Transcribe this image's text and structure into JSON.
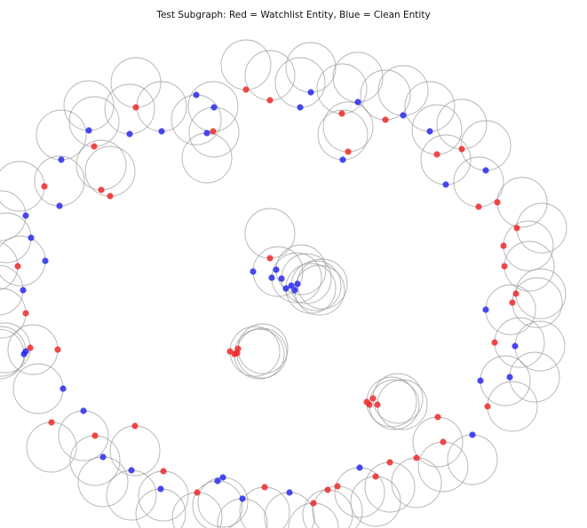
{
  "figure": {
    "title": "Test Subgraph: Red = Watchlist Entity, Blue = Clean Entity"
  },
  "legend_colors": {
    "watchlist": "#ee2222",
    "clean": "#2222ee"
  },
  "nodes": [
    {
      "id": 1,
      "watchlist": false,
      "loop": "up"
    },
    {
      "id": 2,
      "watchlist": false,
      "loop": "up"
    },
    {
      "id": 3,
      "watchlist": true,
      "loop": "up"
    },
    {
      "id": 4,
      "watchlist": false,
      "loop": "up"
    },
    {
      "id": 5,
      "watchlist": true,
      "loop": "up"
    },
    {
      "id": 6,
      "watchlist": false,
      "loop": "up"
    },
    {
      "id": 7,
      "watchlist": false,
      "loop": "down"
    },
    {
      "id": 8,
      "watchlist": false,
      "loop": "down"
    },
    {
      "id": 9,
      "watchlist": false,
      "loop": "down"
    },
    {
      "id": 10,
      "watchlist": true,
      "loop": "up"
    },
    {
      "id": 11,
      "watchlist": true,
      "loop": "up"
    },
    {
      "id": 12,
      "watchlist": true,
      "loop": "up"
    },
    {
      "id": 13,
      "watchlist": false,
      "loop": "up"
    },
    {
      "id": 14,
      "watchlist": false,
      "loop": "up"
    },
    {
      "id": 15,
      "watchlist": true,
      "loop": "up"
    },
    {
      "id": 16,
      "watchlist": false,
      "loop": "up"
    },
    {
      "id": 17,
      "watchlist": true,
      "loop": "up"
    },
    {
      "id": 18,
      "watchlist": false,
      "loop": "up"
    },
    {
      "id": 19,
      "watchlist": false,
      "loop": "up"
    },
    {
      "id": 20,
      "watchlist": true,
      "loop": "up"
    },
    {
      "id": 21,
      "watchlist": true,
      "loop": "up"
    },
    {
      "id": 22,
      "watchlist": false,
      "loop": "up"
    },
    {
      "id": 23,
      "watchlist": false,
      "loop": "up"
    },
    {
      "id": 24,
      "watchlist": true,
      "loop": "up"
    },
    {
      "id": 25,
      "watchlist": true,
      "loop": "right"
    },
    {
      "id": 26,
      "watchlist": true,
      "loop": "right"
    },
    {
      "id": 27,
      "watchlist": true,
      "loop": "right"
    },
    {
      "id": 28,
      "watchlist": true,
      "loop": "right"
    },
    {
      "id": 29,
      "watchlist": true,
      "loop": "right"
    },
    {
      "id": 30,
      "watchlist": true,
      "loop": "right"
    },
    {
      "id": 31,
      "watchlist": false,
      "loop": "right"
    },
    {
      "id": 32,
      "watchlist": true,
      "loop": "right"
    },
    {
      "id": 33,
      "watchlist": false,
      "loop": "right"
    },
    {
      "id": 34,
      "watchlist": false,
      "loop": "right"
    },
    {
      "id": 35,
      "watchlist": false,
      "loop": "right"
    },
    {
      "id": 36,
      "watchlist": true,
      "loop": "right"
    },
    {
      "id": 37,
      "watchlist": true,
      "loop": "down"
    },
    {
      "id": 38,
      "watchlist": false,
      "loop": "down"
    },
    {
      "id": 39,
      "watchlist": true,
      "loop": "down"
    },
    {
      "id": 40,
      "watchlist": true,
      "loop": "down"
    },
    {
      "id": 41,
      "watchlist": true,
      "loop": "down"
    },
    {
      "id": 42,
      "watchlist": true,
      "loop": "down"
    },
    {
      "id": 43,
      "watchlist": false,
      "loop": "down"
    },
    {
      "id": 44,
      "watchlist": true,
      "loop": "down"
    },
    {
      "id": 45,
      "watchlist": true,
      "loop": "down"
    },
    {
      "id": 46,
      "watchlist": true,
      "loop": "down"
    },
    {
      "id": 47,
      "watchlist": false,
      "loop": "down"
    },
    {
      "id": 48,
      "watchlist": true,
      "loop": "down"
    },
    {
      "id": 49,
      "watchlist": false,
      "loop": "down"
    },
    {
      "id": 50,
      "watchlist": false,
      "loop": "down"
    },
    {
      "id": 51,
      "watchlist": false,
      "loop": "down"
    },
    {
      "id": 52,
      "watchlist": true,
      "loop": "down"
    },
    {
      "id": 53,
      "watchlist": true,
      "loop": "down"
    },
    {
      "id": 54,
      "watchlist": false,
      "loop": "down"
    },
    {
      "id": 55,
      "watchlist": true,
      "loop": "down"
    },
    {
      "id": 56,
      "watchlist": false,
      "loop": "down"
    },
    {
      "id": 57,
      "watchlist": true,
      "loop": "down"
    },
    {
      "id": 58,
      "watchlist": false,
      "loop": "down"
    },
    {
      "id": 59,
      "watchlist": false,
      "loop": "down"
    },
    {
      "id": 60,
      "watchlist": true,
      "loop": "down"
    },
    {
      "id": 61,
      "watchlist": false,
      "loop": "left"
    },
    {
      "id": 62,
      "watchlist": false,
      "loop": "left"
    },
    {
      "id": 63,
      "watchlist": true,
      "loop": "left"
    },
    {
      "id": 64,
      "watchlist": true,
      "loop": "left"
    },
    {
      "id": 65,
      "watchlist": false,
      "loop": "left"
    },
    {
      "id": 66,
      "watchlist": true,
      "loop": "left"
    },
    {
      "id": 67,
      "watchlist": false,
      "loop": "left"
    },
    {
      "id": 68,
      "watchlist": true,
      "loop": "left"
    },
    {
      "id": 69,
      "watchlist": false,
      "loop": "left"
    },
    {
      "id": 70,
      "watchlist": false,
      "loop": "left"
    },
    {
      "id": 71,
      "watchlist": false,
      "loop": "left"
    },
    {
      "id": 72,
      "watchlist": true,
      "loop": "left"
    },
    {
      "id": 73,
      "watchlist": false,
      "loop": "up"
    },
    {
      "id": 74,
      "watchlist": true,
      "loop": "up"
    },
    {
      "id": 75,
      "watchlist": true,
      "loop": "up"
    },
    {
      "id": 76,
      "watchlist": false,
      "loop": "up"
    },
    {
      "id": 77,
      "watchlist": true,
      "loop": "up"
    },
    {
      "id": 78,
      "watchlist": false,
      "loop": "right"
    },
    {
      "id": 79,
      "watchlist": false,
      "loop": "right"
    },
    {
      "id": 80,
      "watchlist": false,
      "loop": "right"
    },
    {
      "id": 81,
      "watchlist": false,
      "loop": "right"
    },
    {
      "id": 82,
      "watchlist": false,
      "loop": "right"
    },
    {
      "id": 83,
      "watchlist": false,
      "loop": "right"
    },
    {
      "id": 84,
      "watchlist": false,
      "loop": "right"
    },
    {
      "id": 85,
      "watchlist": false,
      "loop": "right"
    },
    {
      "id": 86,
      "watchlist": true,
      "loop": "up"
    },
    {
      "id": 87,
      "watchlist": true,
      "loop": "right"
    },
    {
      "id": 88,
      "watchlist": true,
      "loop": "right"
    },
    {
      "id": 89,
      "watchlist": true,
      "loop": "right"
    },
    {
      "id": 90,
      "watchlist": true,
      "loop": "right"
    },
    {
      "id": 91,
      "watchlist": true,
      "loop": "right"
    },
    {
      "id": 92,
      "watchlist": true,
      "loop": "right"
    },
    {
      "id": 93,
      "watchlist": true,
      "loop": "right"
    },
    {
      "id": 94,
      "watchlist": true,
      "loop": "right"
    }
  ]
}
